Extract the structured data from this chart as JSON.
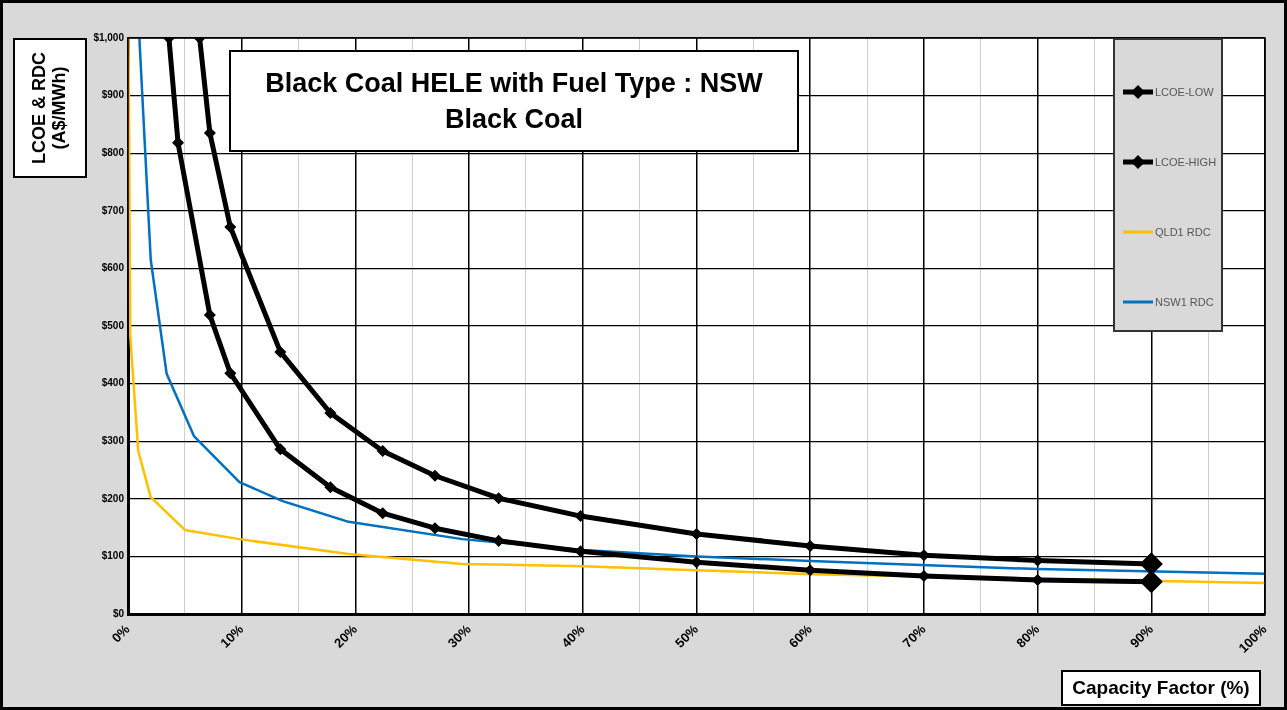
{
  "chart_data": {
    "type": "line",
    "title": "Black Coal HELE with Fuel Type : NSW Black Coal",
    "xlabel": "Capacity Factor (%)",
    "ylabel": "LCOE & RDC (A$/MWh)",
    "xlim": [
      0,
      100
    ],
    "ylim": [
      0,
      1000
    ],
    "xticks": [
      {
        "value": 0,
        "label": "0%"
      },
      {
        "value": 5,
        "label": null
      },
      {
        "value": 10,
        "label": "10%"
      },
      {
        "value": 15,
        "label": null
      },
      {
        "value": 20,
        "label": "20%"
      },
      {
        "value": 25,
        "label": null
      },
      {
        "value": 30,
        "label": "30%"
      },
      {
        "value": 35,
        "label": null
      },
      {
        "value": 40,
        "label": "40%"
      },
      {
        "value": 45,
        "label": null
      },
      {
        "value": 50,
        "label": "50%"
      },
      {
        "value": 55,
        "label": null
      },
      {
        "value": 60,
        "label": "60%"
      },
      {
        "value": 65,
        "label": null
      },
      {
        "value": 70,
        "label": "70%"
      },
      {
        "value": 75,
        "label": null
      },
      {
        "value": 80,
        "label": "80%"
      },
      {
        "value": 85,
        "label": null
      },
      {
        "value": 90,
        "label": "90%"
      },
      {
        "value": 95,
        "label": null
      },
      {
        "value": 100,
        "label": "100%"
      }
    ],
    "yticks": [
      {
        "value": 0,
        "label": "$0"
      },
      {
        "value": 100,
        "label": "$100"
      },
      {
        "value": 200,
        "label": "$200"
      },
      {
        "value": 300,
        "label": "$300"
      },
      {
        "value": 400,
        "label": "$400"
      },
      {
        "value": 500,
        "label": "$500"
      },
      {
        "value": 600,
        "label": "$600"
      },
      {
        "value": 700,
        "label": "$700"
      },
      {
        "value": 800,
        "label": "$800"
      },
      {
        "value": 900,
        "label": "$900"
      },
      {
        "value": 1000,
        "label": "$1,000"
      }
    ],
    "grid": true,
    "legend": "top right",
    "line_style": "solid",
    "series": [
      {
        "name": "LCOE-LOW",
        "color": "#000000",
        "marker": "diamond",
        "x": [
          3.6,
          4.4,
          7.2,
          9.0,
          13.4,
          17.8,
          22.4,
          27,
          32.6,
          39.8,
          50,
          60,
          70,
          80,
          90
        ],
        "values": [
          1000,
          818,
          519,
          418,
          286,
          220,
          175,
          149,
          127,
          109,
          90,
          76,
          66,
          59,
          56
        ]
      },
      {
        "name": "LCOE-HIGH",
        "color": "#000000",
        "marker": "diamond",
        "x": [
          6.3,
          7.2,
          9.0,
          13.4,
          17.8,
          22.4,
          27,
          32.6,
          39.8,
          50,
          60,
          70,
          80,
          90
        ],
        "values": [
          1000,
          835,
          672,
          455,
          349,
          283,
          240,
          201,
          170,
          139,
          118,
          102,
          93,
          87
        ]
      },
      {
        "name": "QLD1 RDC",
        "color": "#ffc000",
        "marker": "none",
        "x": [
          0.05,
          0.2,
          0.9,
          2.0,
          4.1,
          5.0,
          9.8,
          19.4,
          29.4,
          40,
          50,
          60,
          100
        ],
        "values": [
          1000,
          483,
          283,
          203,
          163,
          146,
          130,
          104,
          87,
          83,
          76,
          69,
          54
        ]
      },
      {
        "name": "NSW1 RDC",
        "color": "#0070c0",
        "marker": "none",
        "x": [
          1.0,
          2.0,
          3.4,
          5.8,
          9.8,
          13.6,
          19.4,
          29.4,
          40,
          50,
          60,
          80,
          100
        ],
        "values": [
          1000,
          615,
          417,
          309,
          229,
          196,
          160,
          130,
          111,
          100,
          92,
          78,
          70
        ]
      }
    ]
  }
}
